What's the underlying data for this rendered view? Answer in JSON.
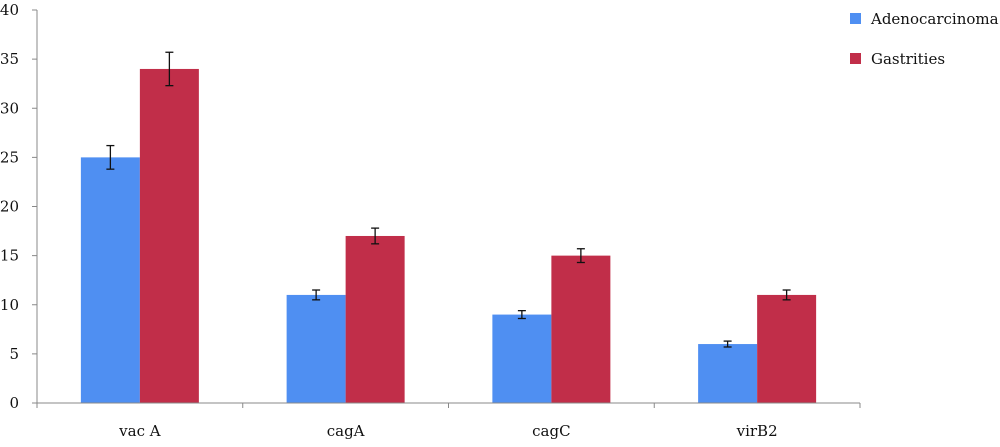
{
  "chart_data": {
    "type": "bar",
    "categories": [
      "vac A",
      "cagA",
      "cagC",
      "virB2"
    ],
    "series": [
      {
        "name": "Adenocarcinoma",
        "color": "#4f8ff2",
        "values": [
          25,
          11,
          9,
          6
        ],
        "errors": [
          1.2,
          0.5,
          0.4,
          0.3
        ]
      },
      {
        "name": "Gastrities",
        "color": "#c12e49",
        "values": [
          34,
          17,
          15,
          11
        ],
        "errors": [
          1.7,
          0.8,
          0.7,
          0.5
        ]
      }
    ],
    "yticks": [
      "0",
      "5",
      "10",
      "15",
      "20",
      "25",
      "30",
      "35",
      "40"
    ],
    "ylim": [
      0,
      40
    ],
    "grid": false,
    "legend": "top-right",
    "title": "",
    "xlabel": "",
    "ylabel": ""
  }
}
